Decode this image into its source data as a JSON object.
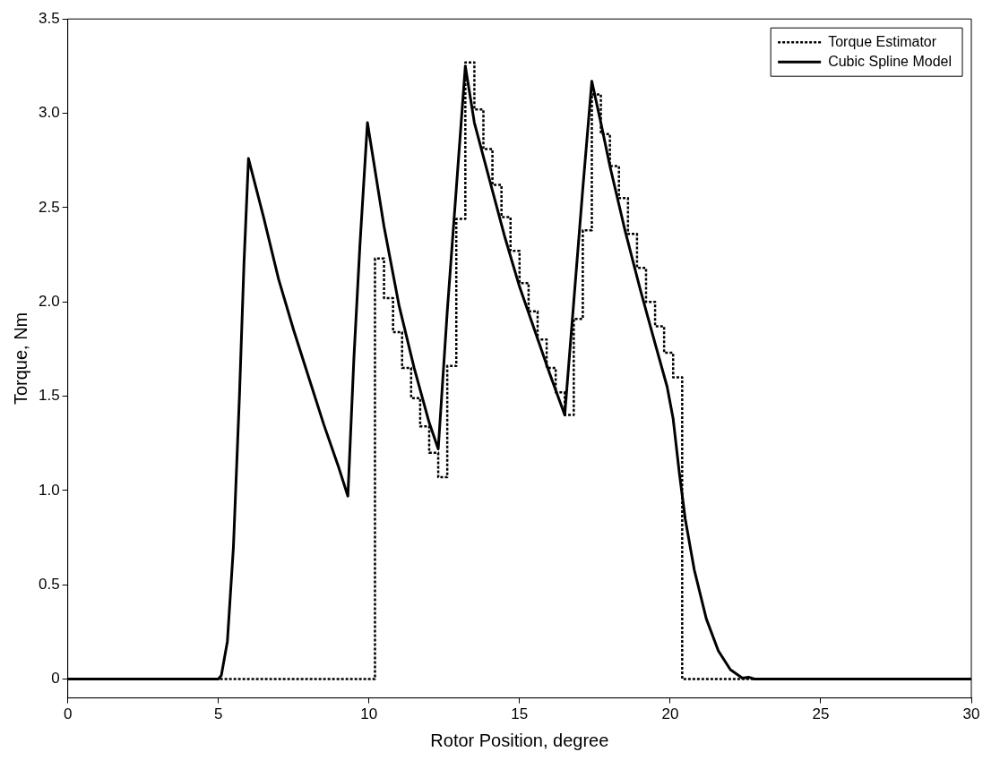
{
  "chart_data": {
    "type": "line",
    "xlabel": "Rotor Position, degree",
    "ylabel": "Torque, Nm",
    "xlim": [
      0,
      30
    ],
    "ylim": [
      -0.1,
      3.5
    ],
    "xticks": [
      0,
      5,
      10,
      15,
      20,
      25,
      30
    ],
    "yticks": [
      0,
      0.5,
      {
        "value": 1,
        "label": "1.0"
      },
      1.5,
      {
        "value": 2,
        "label": "2.0"
      },
      2.5,
      {
        "value": 3,
        "label": "3.0"
      },
      3.5
    ],
    "grid": false,
    "legend": "top right",
    "marker": "none",
    "series": [
      {
        "name": "Torque Estimator",
        "type": "step",
        "color": "#000000",
        "line_style": "dotted",
        "x": [
          0,
          10.2,
          10.5,
          10.8,
          11.1,
          11.4,
          11.7,
          12.0,
          12.3,
          12.6,
          12.9,
          13.2,
          13.5,
          13.8,
          14.1,
          14.4,
          14.7,
          15.0,
          15.3,
          15.6,
          15.9,
          16.2,
          16.5,
          16.8,
          17.1,
          17.4,
          17.7,
          18.0,
          18.3,
          18.6,
          18.9,
          19.2,
          19.5,
          19.8,
          20.1,
          20.4,
          30
        ],
        "values": [
          0,
          2.23,
          2.02,
          1.84,
          1.65,
          1.49,
          1.34,
          1.2,
          1.07,
          1.66,
          2.44,
          3.27,
          3.02,
          2.81,
          2.62,
          2.45,
          2.27,
          2.1,
          1.95,
          1.8,
          1.65,
          1.52,
          1.4,
          1.91,
          2.38,
          3.1,
          2.89,
          2.72,
          2.55,
          2.36,
          2.18,
          2.0,
          1.87,
          1.73,
          1.6,
          0,
          0
        ]
      },
      {
        "name": "Cubic Spline Model",
        "color": "#000000",
        "line_style": "solid",
        "x": [
          0,
          5.0,
          5.1,
          5.3,
          5.5,
          5.7,
          5.85,
          6.0,
          6.5,
          7.0,
          7.5,
          8.0,
          8.5,
          9.0,
          9.3,
          9.5,
          9.7,
          9.95,
          10.5,
          11.0,
          11.5,
          12.0,
          12.3,
          12.6,
          12.9,
          13.2,
          13.5,
          14.0,
          14.5,
          15.0,
          15.5,
          16.0,
          16.5,
          16.8,
          17.1,
          17.4,
          17.7,
          18.0,
          18.5,
          19.0,
          19.5,
          19.9,
          20.1,
          20.3,
          20.5,
          20.8,
          21.2,
          21.6,
          22.0,
          22.4,
          22.6,
          22.8,
          30
        ],
        "values": [
          0,
          0,
          0.02,
          0.2,
          0.7,
          1.5,
          2.2,
          2.76,
          2.45,
          2.12,
          1.85,
          1.6,
          1.35,
          1.12,
          0.97,
          1.7,
          2.3,
          2.95,
          2.4,
          1.98,
          1.65,
          1.36,
          1.22,
          1.95,
          2.6,
          3.25,
          2.95,
          2.65,
          2.35,
          2.08,
          1.85,
          1.62,
          1.4,
          2.0,
          2.6,
          3.17,
          2.95,
          2.72,
          2.38,
          2.07,
          1.78,
          1.55,
          1.38,
          1.1,
          0.85,
          0.58,
          0.32,
          0.15,
          0.05,
          0.005,
          0.01,
          0,
          0
        ]
      }
    ]
  }
}
